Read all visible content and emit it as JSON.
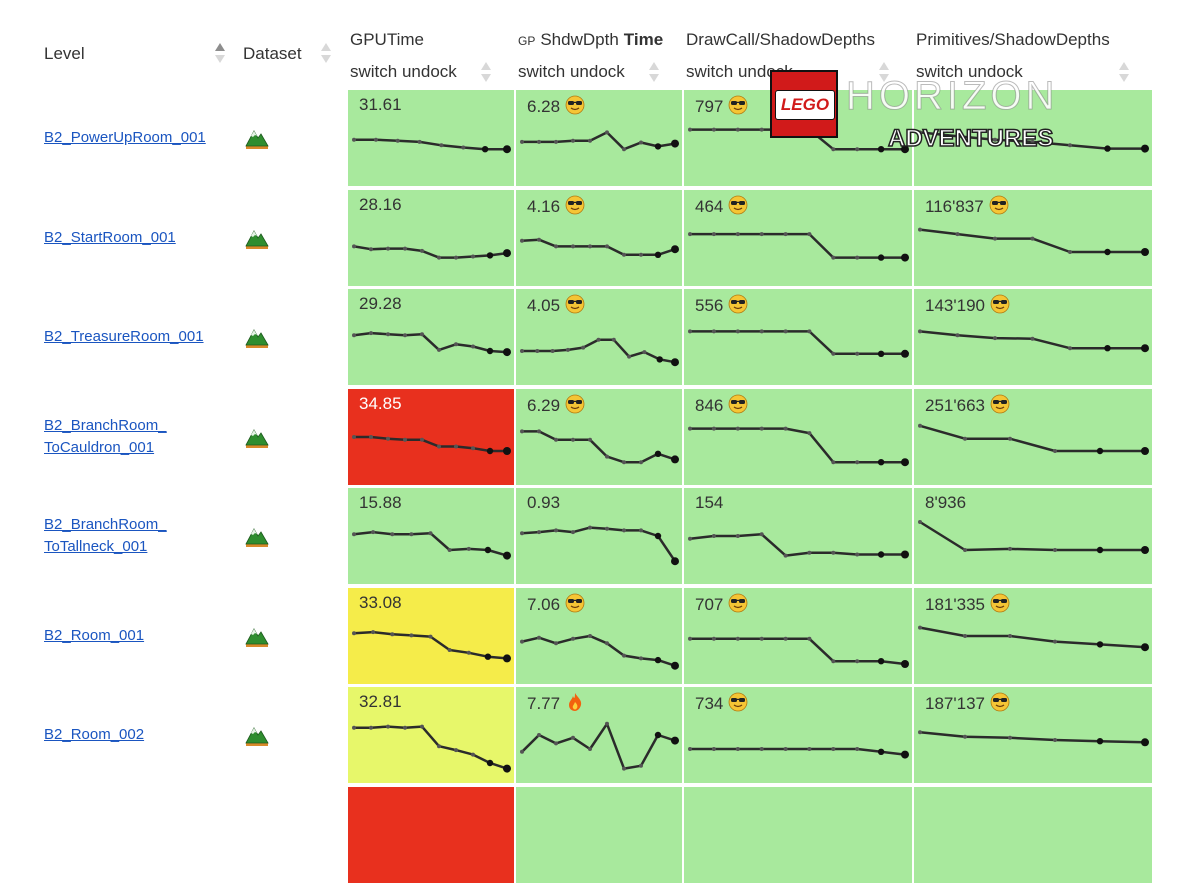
{
  "header": {
    "level_label": "Level",
    "dataset_label": "Dataset",
    "columns": [
      {
        "title_prefix": "",
        "title": "GPUTime",
        "title_bold": "",
        "sub": "switch undock"
      },
      {
        "title_prefix": "GP",
        "title": "ShdwDpth",
        "title_bold": "Time",
        "sub": "switch undock"
      },
      {
        "title_prefix": "",
        "title": "DrawCall/ShadowDepths",
        "title_bold": "",
        "sub": "switch undock"
      },
      {
        "title_prefix": "",
        "title": "Primitives/ShadowDepths",
        "title_bold": "",
        "sub": "switch undock"
      }
    ]
  },
  "colors": {
    "green": "#a8e99d",
    "red": "#e8301e",
    "yellow": "#f5ec4a",
    "yellow_green": "#e7f76a",
    "link": "#1a55c0",
    "line": "#2b2b2b"
  },
  "rows": [
    {
      "level": "B2_PowerUpRoom_001",
      "dataset_icon": "mountain-icon",
      "cells": [
        {
          "value": "31.61",
          "emoji": "",
          "color": "green",
          "trend": [
            0.72,
            0.72,
            0.7,
            0.68,
            0.62,
            0.58,
            0.55,
            0.55
          ]
        },
        {
          "value": "6.28",
          "emoji": "sunglasses-smiley-icon",
          "color": "green",
          "trend": [
            0.68,
            0.68,
            0.68,
            0.7,
            0.7,
            0.85,
            0.55,
            0.67,
            0.6,
            0.65
          ]
        },
        {
          "value": "797",
          "emoji": "sunglasses-smiley-icon",
          "color": "green",
          "trend": [
            0.9,
            0.9,
            0.9,
            0.9,
            0.9,
            0.9,
            0.55,
            0.55,
            0.55,
            0.55
          ]
        },
        {
          "value": "",
          "emoji": "",
          "color": "green",
          "trend": [
            0.85,
            0.78,
            0.72,
            0.68,
            0.62,
            0.56,
            0.56
          ]
        }
      ]
    },
    {
      "level": "B2_StartRoom_001",
      "dataset_icon": "mountain-icon",
      "cells": [
        {
          "value": "28.16",
          "emoji": "",
          "color": "green",
          "trend": [
            0.6,
            0.55,
            0.56,
            0.56,
            0.52,
            0.4,
            0.4,
            0.42,
            0.44,
            0.48
          ]
        },
        {
          "value": "4.16",
          "emoji": "sunglasses-smiley-icon",
          "color": "green",
          "trend": [
            0.7,
            0.72,
            0.6,
            0.6,
            0.6,
            0.6,
            0.45,
            0.45,
            0.45,
            0.55
          ]
        },
        {
          "value": "464",
          "emoji": "sunglasses-smiley-icon",
          "color": "green",
          "trend": [
            0.82,
            0.82,
            0.82,
            0.82,
            0.82,
            0.82,
            0.4,
            0.4,
            0.4,
            0.4
          ]
        },
        {
          "value": "116'837",
          "emoji": "sunglasses-smiley-icon",
          "color": "green",
          "trend": [
            0.9,
            0.82,
            0.74,
            0.74,
            0.5,
            0.5,
            0.5
          ]
        }
      ]
    },
    {
      "level": "B2_TreasureRoom_001",
      "dataset_icon": "mountain-icon",
      "cells": [
        {
          "value": "29.28",
          "emoji": "",
          "color": "green",
          "trend": [
            0.78,
            0.82,
            0.8,
            0.78,
            0.8,
            0.52,
            0.62,
            0.58,
            0.5,
            0.48
          ]
        },
        {
          "value": "4.05",
          "emoji": "sunglasses-smiley-icon",
          "color": "green",
          "trend": [
            0.5,
            0.5,
            0.5,
            0.52,
            0.56,
            0.7,
            0.7,
            0.4,
            0.48,
            0.35,
            0.3
          ]
        },
        {
          "value": "556",
          "emoji": "sunglasses-smiley-icon",
          "color": "green",
          "trend": [
            0.85,
            0.85,
            0.85,
            0.85,
            0.85,
            0.85,
            0.45,
            0.45,
            0.45,
            0.45
          ]
        },
        {
          "value": "143'190",
          "emoji": "sunglasses-smiley-icon",
          "color": "green",
          "trend": [
            0.85,
            0.78,
            0.73,
            0.72,
            0.55,
            0.55,
            0.55
          ]
        }
      ]
    },
    {
      "level": "B2_BranchRoom_\nToCauldron_001",
      "dataset_icon": "mountain-icon",
      "cells": [
        {
          "value": "34.85",
          "emoji": "",
          "color": "red",
          "trend": [
            0.75,
            0.75,
            0.72,
            0.7,
            0.7,
            0.58,
            0.58,
            0.55,
            0.5,
            0.5
          ]
        },
        {
          "value": "6.29",
          "emoji": "sunglasses-smiley-icon",
          "color": "green",
          "trend": [
            0.85,
            0.85,
            0.7,
            0.7,
            0.7,
            0.4,
            0.3,
            0.3,
            0.45,
            0.35
          ]
        },
        {
          "value": "846",
          "emoji": "sunglasses-smiley-icon",
          "color": "green",
          "trend": [
            0.9,
            0.9,
            0.9,
            0.9,
            0.9,
            0.82,
            0.3,
            0.3,
            0.3,
            0.3
          ]
        },
        {
          "value": "251'663",
          "emoji": "sunglasses-smiley-icon",
          "color": "green",
          "trend": [
            0.95,
            0.72,
            0.72,
            0.5,
            0.5,
            0.5
          ]
        }
      ]
    },
    {
      "level": "B2_BranchRoom_\nToTallneck_001",
      "dataset_icon": "mountain-icon",
      "cells": [
        {
          "value": "15.88",
          "emoji": "",
          "color": "green",
          "trend": [
            0.78,
            0.82,
            0.78,
            0.78,
            0.8,
            0.5,
            0.52,
            0.5,
            0.4
          ]
        },
        {
          "value": "0.93",
          "emoji": "",
          "color": "green",
          "trend": [
            0.8,
            0.82,
            0.85,
            0.82,
            0.9,
            0.88,
            0.85,
            0.85,
            0.75,
            0.3
          ]
        },
        {
          "value": "154",
          "emoji": "",
          "color": "green",
          "trend": [
            0.7,
            0.75,
            0.75,
            0.78,
            0.4,
            0.45,
            0.45,
            0.42,
            0.42,
            0.42
          ]
        },
        {
          "value": "8'936",
          "emoji": "",
          "color": "green",
          "trend": [
            1.0,
            0.5,
            0.52,
            0.5,
            0.5,
            0.5
          ]
        }
      ]
    },
    {
      "level": "B2_Room_001",
      "dataset_icon": "mountain-icon",
      "cells": [
        {
          "value": "33.08",
          "emoji": "",
          "color": "yellow",
          "trend": [
            0.8,
            0.82,
            0.78,
            0.76,
            0.74,
            0.5,
            0.45,
            0.38,
            0.35
          ]
        },
        {
          "value": "7.06",
          "emoji": "sunglasses-smiley-icon",
          "color": "green",
          "trend": [
            0.65,
            0.72,
            0.62,
            0.7,
            0.75,
            0.62,
            0.4,
            0.35,
            0.32,
            0.22
          ]
        },
        {
          "value": "707",
          "emoji": "sunglasses-smiley-icon",
          "color": "green",
          "trend": [
            0.7,
            0.7,
            0.7,
            0.7,
            0.7,
            0.7,
            0.3,
            0.3,
            0.3,
            0.25
          ]
        },
        {
          "value": "181'335",
          "emoji": "sunglasses-smiley-icon",
          "color": "green",
          "trend": [
            0.9,
            0.75,
            0.75,
            0.65,
            0.6,
            0.55
          ]
        }
      ]
    },
    {
      "level": "B2_Room_002",
      "dataset_icon": "mountain-icon",
      "cells": [
        {
          "value": "32.81",
          "emoji": "",
          "color": "yellow_green",
          "trend": [
            0.88,
            0.88,
            0.9,
            0.88,
            0.9,
            0.55,
            0.48,
            0.4,
            0.25,
            0.15
          ]
        },
        {
          "value": "7.77",
          "emoji": "fire-icon",
          "color": "green",
          "trend": [
            0.45,
            0.75,
            0.6,
            0.7,
            0.5,
            0.95,
            0.15,
            0.2,
            0.75,
            0.65
          ]
        },
        {
          "value": "734",
          "emoji": "sunglasses-smiley-icon",
          "color": "green",
          "trend": [
            0.5,
            0.5,
            0.5,
            0.5,
            0.5,
            0.5,
            0.5,
            0.5,
            0.45,
            0.4
          ]
        },
        {
          "value": "187'137",
          "emoji": "sunglasses-smiley-icon",
          "color": "green",
          "trend": [
            0.8,
            0.72,
            0.7,
            0.66,
            0.64,
            0.62
          ]
        }
      ]
    },
    {
      "level": "",
      "dataset_icon": "",
      "cells": [
        {
          "value": "",
          "emoji": "",
          "color": "red",
          "trend": []
        },
        {
          "value": "",
          "emoji": "",
          "color": "green",
          "trend": []
        },
        {
          "value": "",
          "emoji": "",
          "color": "green",
          "trend": []
        },
        {
          "value": "",
          "emoji": "",
          "color": "green",
          "trend": []
        }
      ]
    }
  ],
  "overlay": {
    "brand": "LEGO",
    "title": "HORIZON",
    "subtitle": "ADVENTURES"
  }
}
